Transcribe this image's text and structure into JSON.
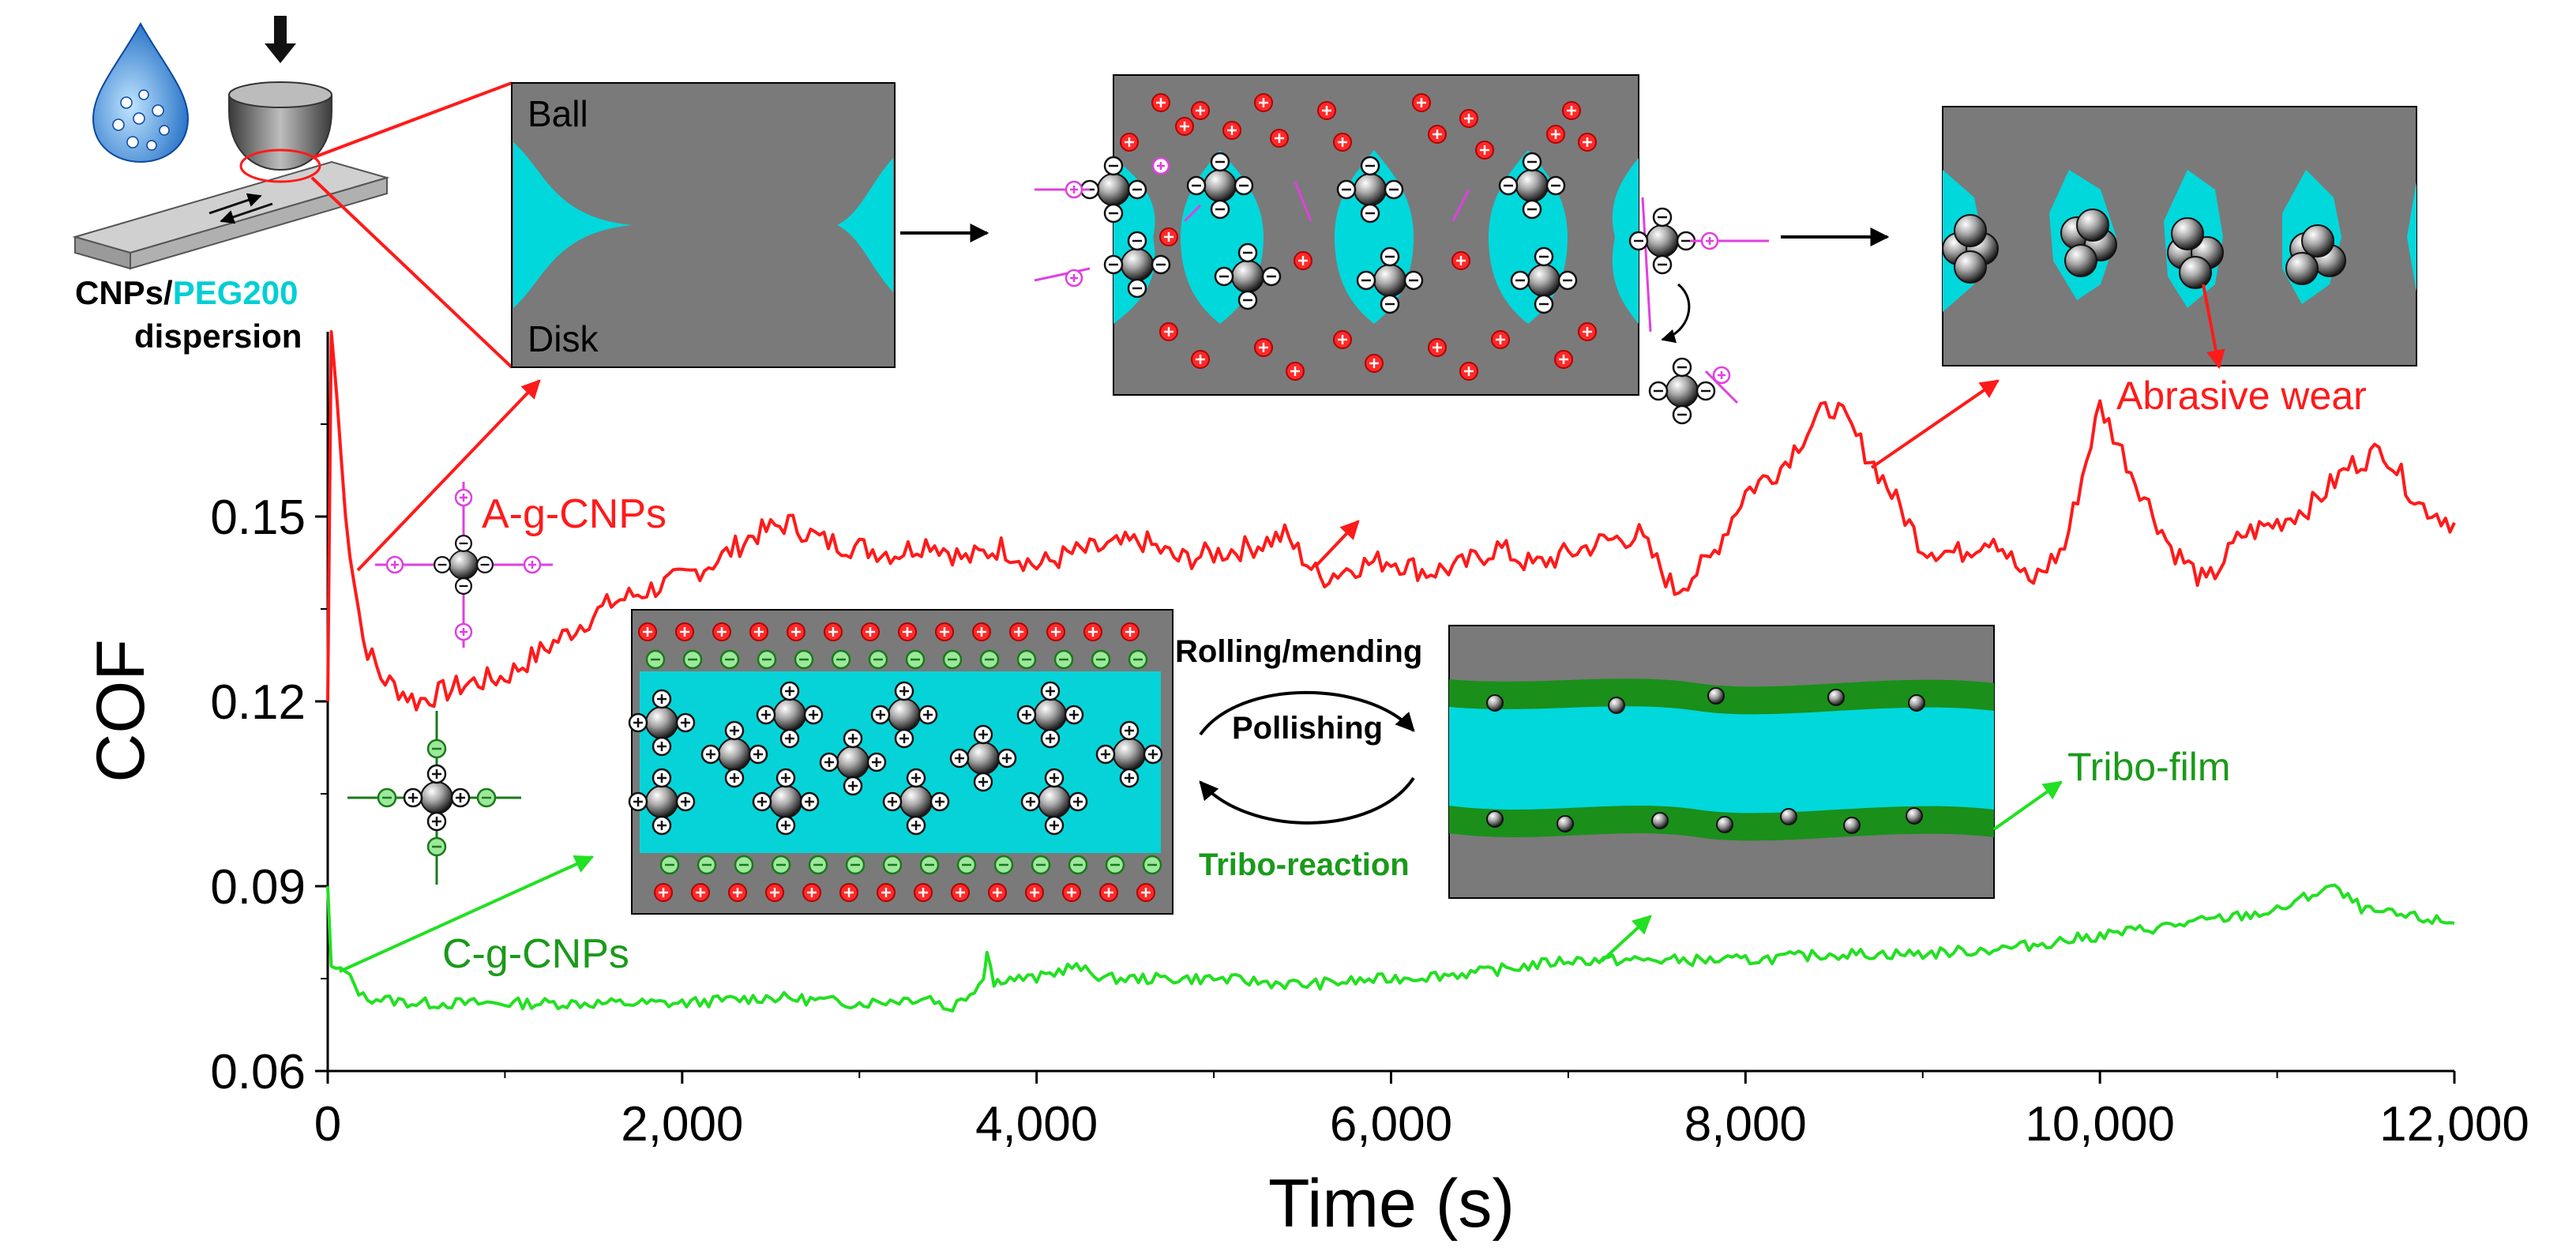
{
  "chart_data": {
    "type": "line",
    "xlabel": "Time (s)",
    "ylabel": "COF",
    "xlim": [
      0,
      12000
    ],
    "ylim": [
      0.06,
      0.18
    ],
    "x_ticks": [
      0,
      2000,
      4000,
      6000,
      8000,
      10000,
      12000
    ],
    "x_tick_labels": [
      "0",
      "2,000",
      "4,000",
      "6,000",
      "8,000",
      "10,000",
      "12,000"
    ],
    "y_ticks": [
      0.06,
      0.09,
      0.12,
      0.15
    ],
    "y_tick_labels": [
      "0.06",
      "0.09",
      "0.12",
      "0.15"
    ],
    "series": [
      {
        "name": "A-g-CNPs",
        "color": "#ff1a1a",
        "x": [
          0,
          20,
          50,
          100,
          200,
          300,
          400,
          500,
          600,
          800,
          1000,
          1200,
          1400,
          1600,
          1800,
          2000,
          2200,
          2400,
          2600,
          2800,
          3000,
          3200,
          3400,
          3600,
          3800,
          4000,
          4200,
          4400,
          4600,
          4800,
          5000,
          5200,
          5400,
          5600,
          5800,
          6000,
          6200,
          6400,
          6600,
          6800,
          7000,
          7200,
          7400,
          7600,
          7800,
          8000,
          8200,
          8400,
          8500,
          8600,
          8800,
          9000,
          9200,
          9400,
          9600,
          9800,
          10000,
          10200,
          10400,
          10600,
          10800,
          11000,
          11200,
          11400,
          11600,
          11800,
          12000
        ],
        "values": [
          0.12,
          0.18,
          0.17,
          0.15,
          0.13,
          0.124,
          0.122,
          0.12,
          0.121,
          0.123,
          0.124,
          0.128,
          0.132,
          0.136,
          0.138,
          0.14,
          0.143,
          0.147,
          0.149,
          0.146,
          0.145,
          0.144,
          0.146,
          0.143,
          0.145,
          0.142,
          0.144,
          0.145,
          0.146,
          0.143,
          0.144,
          0.145,
          0.147,
          0.14,
          0.142,
          0.143,
          0.141,
          0.142,
          0.145,
          0.142,
          0.144,
          0.146,
          0.147,
          0.138,
          0.143,
          0.154,
          0.158,
          0.166,
          0.168,
          0.164,
          0.155,
          0.145,
          0.144,
          0.147,
          0.139,
          0.145,
          0.168,
          0.156,
          0.145,
          0.139,
          0.147,
          0.149,
          0.152,
          0.158,
          0.161,
          0.152,
          0.149
        ]
      },
      {
        "name": "C-g-CNPs",
        "color": "#22e022",
        "x": [
          0,
          20,
          100,
          200,
          500,
          1000,
          1500,
          2000,
          2500,
          3000,
          3400,
          3500,
          3600,
          3700,
          3720,
          3760,
          3800,
          4000,
          4200,
          4400,
          4600,
          5000,
          5500,
          6000,
          6500,
          7000,
          7500,
          8000,
          8500,
          9000,
          9500,
          10000,
          10500,
          11000,
          11300,
          11500,
          12000
        ],
        "values": [
          0.09,
          0.077,
          0.076,
          0.072,
          0.071,
          0.071,
          0.071,
          0.071,
          0.072,
          0.071,
          0.072,
          0.07,
          0.072,
          0.075,
          0.08,
          0.074,
          0.075,
          0.075,
          0.077,
          0.075,
          0.075,
          0.075,
          0.074,
          0.075,
          0.076,
          0.078,
          0.078,
          0.078,
          0.079,
          0.079,
          0.08,
          0.082,
          0.084,
          0.086,
          0.09,
          0.086,
          0.084
        ]
      }
    ],
    "annotations": [
      "A-g-CNPs",
      "C-g-CNPs",
      "Abrasive wear",
      "Tribo-film",
      "Rolling/mending",
      "Pollishing",
      "Tribo-reaction",
      "Ball",
      "Disk",
      "CNPs/",
      "PEG200",
      "dispersion"
    ]
  },
  "labels": {
    "series_a": "A-g-CNPs",
    "series_c": "C-g-CNPs",
    "abrasive_wear": "Abrasive wear",
    "tribo_film": "Tribo-film",
    "rolling_mending": "Rolling/mending",
    "pollishing": "Pollishing",
    "tribo_reaction": "Tribo-reaction",
    "ball": "Ball",
    "disk": "Disk",
    "cnps_prefix": "CNPs/",
    "peg200": "PEG200",
    "dispersion": "dispersion"
  },
  "colors": {
    "gray_block": "#7a7a7a",
    "lubricant": "#00d8dc",
    "film_green": "#1a8f1a",
    "positive_red": "#ff2a2a",
    "anion_green": "#2aa84a",
    "magenta": "#e040e0"
  }
}
